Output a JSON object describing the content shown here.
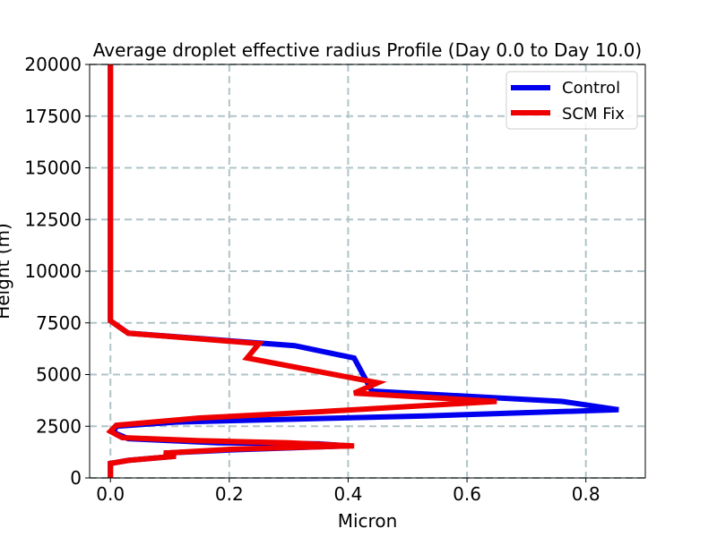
{
  "chart_data": {
    "type": "line",
    "title": "Average droplet effective radius Profile (Day 0.0 to Day 10.0)",
    "xlabel": "Micron",
    "ylabel": "Height (m)",
    "xlim": [
      -0.035,
      0.9
    ],
    "ylim": [
      0,
      20000
    ],
    "xticks": [
      0.0,
      0.2,
      0.4,
      0.6,
      0.8
    ],
    "xtick_labels": [
      "0.0",
      "0.2",
      "0.4",
      "0.6",
      "0.8"
    ],
    "yticks": [
      0,
      2500,
      5000,
      7500,
      10000,
      12500,
      15000,
      17500,
      20000
    ],
    "ytick_labels": [
      "0",
      "2500",
      "5000",
      "7500",
      "10000",
      "12500",
      "15000",
      "17500",
      "20000"
    ],
    "grid": true,
    "legend_position": "top-right",
    "series": [
      {
        "name": "Control",
        "color": "#0000ee",
        "points": [
          [
            0.0,
            20000
          ],
          [
            0.0,
            7600
          ],
          [
            0.03,
            7000
          ],
          [
            0.31,
            6400
          ],
          [
            0.41,
            5800
          ],
          [
            0.44,
            4200
          ],
          [
            0.76,
            3700
          ],
          [
            0.855,
            3300
          ],
          [
            0.53,
            3000
          ],
          [
            0.11,
            2700
          ],
          [
            0.01,
            2500
          ],
          [
            0.005,
            2200
          ],
          [
            0.03,
            1900
          ],
          [
            0.18,
            1700
          ],
          [
            0.35,
            1650
          ],
          [
            0.4,
            1550
          ],
          [
            0.2,
            1350
          ],
          [
            0.09,
            1200
          ],
          [
            0.11,
            1050
          ],
          [
            0.03,
            850
          ],
          [
            0.0,
            700
          ],
          [
            0.0,
            0
          ]
        ]
      },
      {
        "name": "SCM Fix",
        "color": "#ee0000",
        "points": [
          [
            0.0,
            20000
          ],
          [
            0.0,
            7600
          ],
          [
            0.03,
            7000
          ],
          [
            0.25,
            6500
          ],
          [
            0.23,
            5800
          ],
          [
            0.45,
            4600
          ],
          [
            0.41,
            4100
          ],
          [
            0.65,
            3700
          ],
          [
            0.35,
            3200
          ],
          [
            0.15,
            2900
          ],
          [
            0.01,
            2550
          ],
          [
            0.0,
            2250
          ],
          [
            0.02,
            1950
          ],
          [
            0.15,
            1800
          ],
          [
            0.3,
            1700
          ],
          [
            0.41,
            1550
          ],
          [
            0.21,
            1400
          ],
          [
            0.09,
            1200
          ],
          [
            0.11,
            1050
          ],
          [
            0.03,
            850
          ],
          [
            0.0,
            700
          ],
          [
            0.0,
            0
          ]
        ]
      }
    ]
  }
}
